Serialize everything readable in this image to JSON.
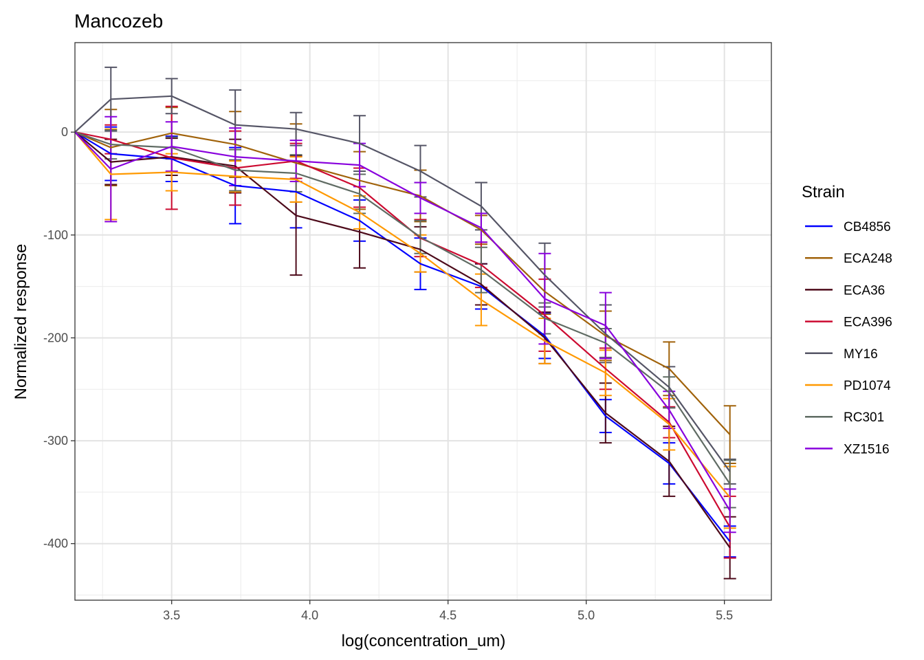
{
  "chart_data": {
    "type": "line",
    "title": "Mancozeb",
    "xlabel": "log(concentration_um)",
    "ylabel": "Normalized response",
    "xlim": [
      3.15,
      5.67
    ],
    "ylim": [
      -455,
      87
    ],
    "x_ticks": [
      3.5,
      4.0,
      4.5,
      5.0,
      5.5
    ],
    "x_tick_labels": [
      "3.5",
      "4.0",
      "4.5",
      "5.0",
      "5.5"
    ],
    "y_ticks": [
      0,
      -100,
      -200,
      -300,
      -400
    ],
    "y_tick_labels": [
      "0",
      "-100",
      "-200",
      "-300",
      "-400"
    ],
    "x_minor_ticks": [
      3.25,
      3.75,
      4.25,
      4.75,
      5.25
    ],
    "y_minor_ticks": [
      50,
      -50,
      -150,
      -250,
      -350,
      -450
    ],
    "grid": true,
    "legend_title": "Strain",
    "legend_position": "right",
    "x": [
      3.15,
      3.28,
      3.5,
      3.73,
      3.95,
      4.18,
      4.4,
      4.62,
      4.85,
      5.07,
      5.3,
      5.52
    ],
    "series": [
      {
        "name": "CB4856",
        "color": "#0000FF",
        "values": [
          0,
          -21,
          -26,
          -52,
          -58,
          -86,
          -128,
          -150,
          -198,
          -276,
          -322,
          -398
        ],
        "err": [
          0,
          26,
          22,
          37,
          35,
          20,
          25,
          22,
          22,
          16,
          20,
          15
        ]
      },
      {
        "name": "ECA248",
        "color": "#A0620A",
        "values": [
          0,
          -15,
          -1,
          -12,
          -30,
          -47,
          -62,
          -95,
          -155,
          -198,
          -230,
          -294
        ],
        "err": [
          0,
          37,
          25,
          32,
          38,
          28,
          25,
          14,
          22,
          24,
          26,
          28
        ]
      },
      {
        "name": "ECA36",
        "color": "#4D0A1A",
        "values": [
          0,
          -29,
          -24,
          -33,
          -81,
          -97,
          -114,
          -148,
          -200,
          -273,
          -320,
          -404
        ],
        "err": [
          0,
          22,
          18,
          26,
          58,
          35,
          22,
          20,
          25,
          29,
          34,
          30
        ]
      },
      {
        "name": "ECA396",
        "color": "#CC0A30",
        "values": [
          0,
          -7,
          -25,
          -35,
          -28,
          -54,
          -103,
          -129,
          -178,
          -230,
          -282,
          -384
        ],
        "err": [
          0,
          14,
          50,
          36,
          17,
          19,
          18,
          22,
          35,
          20,
          15,
          30
        ]
      },
      {
        "name": "MY16",
        "color": "#555566",
        "values": [
          0,
          32,
          35,
          7,
          3,
          -11,
          -38,
          -72,
          -139,
          -196,
          -248,
          -330
        ],
        "err": [
          0,
          31,
          17,
          34,
          16,
          27,
          25,
          23,
          31,
          28,
          20,
          12
        ]
      },
      {
        "name": "PD1074",
        "color": "#FF9900",
        "values": [
          0,
          -41,
          -39,
          -43,
          -46,
          -78,
          -118,
          -163,
          -203,
          -234,
          -284,
          -355
        ],
        "err": [
          0,
          44,
          18,
          15,
          22,
          16,
          18,
          25,
          22,
          22,
          25,
          30
        ]
      },
      {
        "name": "RC301",
        "color": "#5F6B63",
        "values": [
          0,
          -12,
          -15,
          -37,
          -40,
          -60,
          -102,
          -134,
          -181,
          -205,
          -253,
          -342
        ],
        "err": [
          0,
          14,
          10,
          20,
          18,
          19,
          16,
          22,
          15,
          14,
          15,
          23
        ]
      },
      {
        "name": "XZ1516",
        "color": "#8800DD",
        "values": [
          0,
          -36,
          -14,
          -24,
          -28,
          -32,
          -64,
          -93,
          -162,
          -188,
          -270,
          -368
        ],
        "err": [
          0,
          51,
          24,
          28,
          20,
          21,
          15,
          14,
          44,
          32,
          18,
          21
        ]
      }
    ]
  }
}
